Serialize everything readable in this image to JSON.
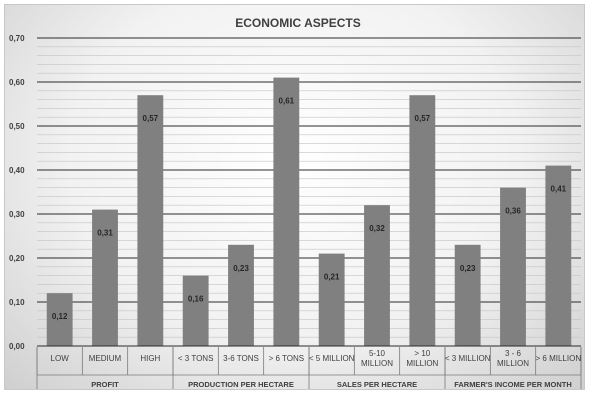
{
  "chart_data": {
    "type": "bar",
    "title": "ECONOMIC ASPECTS",
    "ylim": [
      0,
      0.7
    ],
    "yticks": [
      "0,00",
      "0,10",
      "0,20",
      "0,30",
      "0,40",
      "0,50",
      "0,60",
      "0,70"
    ],
    "grid": true,
    "legend": "none",
    "bar_color": "#808080",
    "groups": [
      {
        "name": "PROFIT",
        "categories": [
          [
            "LOW"
          ],
          [
            "MEDIUM"
          ],
          [
            "HIGH"
          ]
        ],
        "values": [
          0.12,
          0.31,
          0.57
        ],
        "labels": [
          "0,12",
          "0,31",
          "0,57"
        ]
      },
      {
        "name": "PRODUCTION PER HECTARE",
        "categories": [
          [
            "< 3 TONS"
          ],
          [
            "3-6 TONS"
          ],
          [
            "> 6 TONS"
          ]
        ],
        "values": [
          0.16,
          0.23,
          0.61
        ],
        "labels": [
          "0,16",
          "0,23",
          "0,61"
        ]
      },
      {
        "name": "SALES PER HECTARE",
        "categories": [
          [
            "< 5 MILLION"
          ],
          [
            "5-10",
            "MILLION"
          ],
          [
            "> 10",
            "MILLION"
          ]
        ],
        "values": [
          0.21,
          0.32,
          0.57
        ],
        "labels": [
          "0,21",
          "0,32",
          "0,57"
        ]
      },
      {
        "name": "FARMER'S INCOME PER MONTH",
        "categories": [
          [
            "< 3 MILLION"
          ],
          [
            "3 - 6",
            "MILLION"
          ],
          [
            "> 6 MILLION"
          ]
        ],
        "values": [
          0.23,
          0.36,
          0.41
        ],
        "labels": [
          "0,23",
          "0,36",
          "0,41"
        ]
      }
    ]
  }
}
